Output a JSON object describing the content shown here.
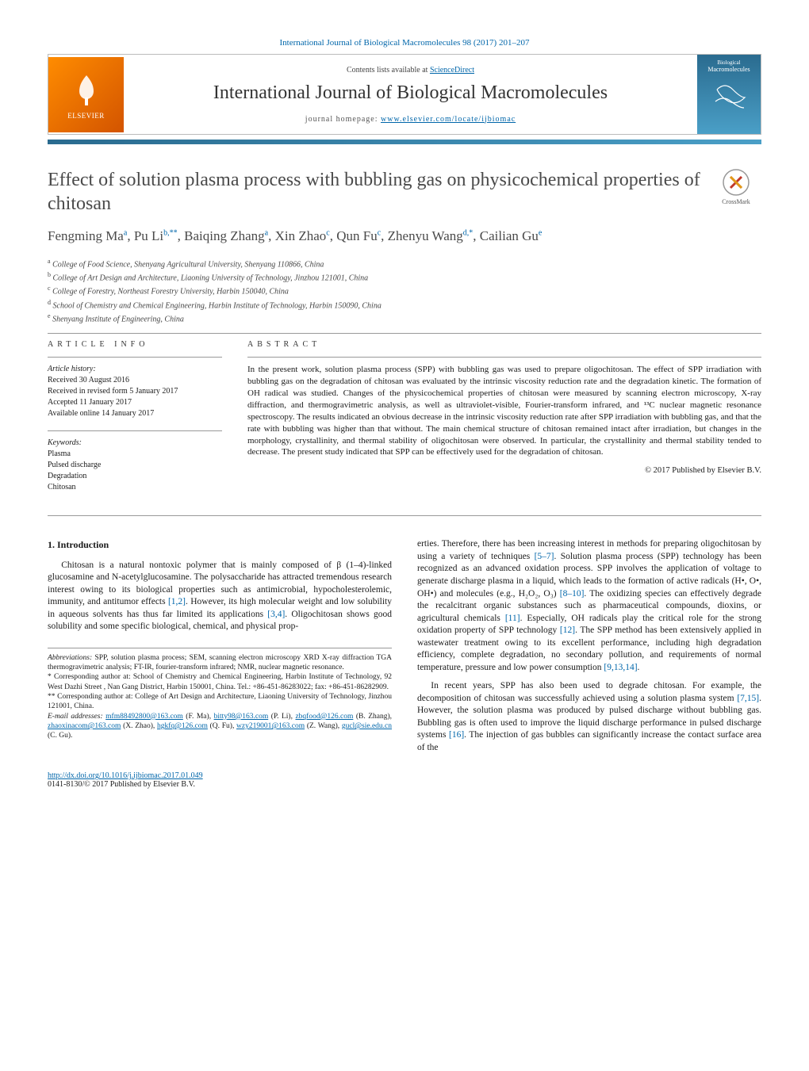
{
  "topLink": "International Journal of Biological Macromolecules 98 (2017) 201–207",
  "banner": {
    "contentsLine": "Contents lists available at ",
    "contentsLink": "ScienceDirect",
    "journalName": "International Journal of Biological Macromolecules",
    "homepageLabel": "journal homepage: ",
    "homepageUrl": "www.elsevier.com/locate/ijbiomac",
    "publisher": "ELSEVIER",
    "coverLine1": "Biological",
    "coverLine2": "Macromolecules"
  },
  "crossmarkLabel": "CrossMark",
  "title": "Effect of solution plasma process with bubbling gas on physicochemical properties of chitosan",
  "authors": [
    {
      "name": "Fengming Ma",
      "sup": "a"
    },
    {
      "name": "Pu Li",
      "sup": "b,**"
    },
    {
      "name": "Baiqing Zhang",
      "sup": "a"
    },
    {
      "name": "Xin Zhao",
      "sup": "c"
    },
    {
      "name": "Qun Fu",
      "sup": "c"
    },
    {
      "name": "Zhenyu Wang",
      "sup": "d,*"
    },
    {
      "name": "Cailian Gu",
      "sup": "e"
    }
  ],
  "affiliations": [
    {
      "sup": "a",
      "text": "College of Food Science, Shenyang Agricultural University, Shenyang 110866, China"
    },
    {
      "sup": "b",
      "text": "College of Art Design and Architecture, Liaoning University of Technology, Jinzhou 121001, China"
    },
    {
      "sup": "c",
      "text": "College of Forestry, Northeast Forestry University, Harbin 150040, China"
    },
    {
      "sup": "d",
      "text": "School of Chemistry and Chemical Engineering, Harbin Institute of Technology, Harbin 150090, China"
    },
    {
      "sup": "e",
      "text": "Shenyang Institute of Engineering, China"
    }
  ],
  "articleInfo": {
    "heading": "article info",
    "historyHeading": "Article history:",
    "history": [
      "Received 30 August 2016",
      "Received in revised form 5 January 2017",
      "Accepted 11 January 2017",
      "Available online 14 January 2017"
    ],
    "keywordsHeading": "Keywords:",
    "keywords": [
      "Plasma",
      "Pulsed discharge",
      "Degradation",
      "Chitosan"
    ]
  },
  "abstract": {
    "heading": "abstract",
    "text": "In the present work, solution plasma process (SPP) with bubbling gas was used to prepare oligochitosan. The effect of SPP irradiation with bubbling gas on the degradation of chitosan was evaluated by the intrinsic viscosity reduction rate and the degradation kinetic. The formation of OH radical was studied. Changes of the physicochemical properties of chitosan were measured by scanning electron microscopy, X-ray diffraction, and thermogravimetric analysis, as well as ultraviolet-visible, Fourier-transform infrared, and ¹³C nuclear magnetic resonance spectroscopy. The results indicated an obvious decrease in the intrinsic viscosity reduction rate after SPP irradiation with bubbling gas, and that the rate with bubbling was higher than that without. The main chemical structure of chitosan remained intact after irradiation, but changes in the morphology, crystallinity, and thermal stability of oligochitosan were observed. In particular, the crystallinity and thermal stability tended to decrease. The present study indicated that SPP can be effectively used for the degradation of chitosan.",
    "copyright": "© 2017 Published by Elsevier B.V."
  },
  "intro": {
    "heading": "1. Introduction",
    "col1p1_a": "Chitosan is a natural nontoxic polymer that is mainly composed of β (1–4)-linked glucosamine and N-acetylglucosamine. The polysaccharide has attracted tremendous research interest owing to its biological properties such as antimicrobial, hypocholesterolemic, immunity, and antitumor effects ",
    "cite12": "[1,2]",
    "col1p1_b": ". However, its high molecular weight and low solubility in aqueous solvents has thus far limited its applications ",
    "cite34": "[3,4]",
    "col1p1_c": ". Oligochitosan shows good solubility and some specific biological, chemical, and physical prop-",
    "col2p1_a": "erties. Therefore, there has been increasing interest in methods for preparing oligochitosan by using a variety of techniques ",
    "cite57": "[5–7]",
    "col2p1_b": ". Solution plasma process (SPP) technology has been recognized as an advanced oxidation process. SPP involves the application of voltage to generate discharge plasma in a liquid, which leads to the formation of active radicals (H•, O•, OH•) and molecules (e.g., H₂O₂, O₃) ",
    "cite810": "[8–10]",
    "col2p1_c": ". The oxidizing species can effectively degrade the recalcitrant organic substances such as pharmaceutical compounds, dioxins, or agricultural chemicals ",
    "cite11": "[11]",
    "col2p1_d": ". Especially, OH radicals play the critical role for the strong oxidation property of SPP technology ",
    "cite12b": "[12]",
    "col2p1_e": ". The SPP method has been extensively applied in wastewater treatment owing to its excellent performance, including high degradation efficiency, complete degradation, no secondary pollution, and requirements of normal temperature, pressure and low power consumption ",
    "cite91314": "[9,13,14]",
    "col2p1_f": ".",
    "col2p2_a": "In recent years, SPP has also been used to degrade chitosan. For example, the decomposition of chitosan was successfully achieved using a solution plasma system ",
    "cite715": "[7,15]",
    "col2p2_b": ". However, the solution plasma was produced by pulsed discharge without bubbling gas. Bubbling gas is often used to improve the liquid discharge performance in pulsed discharge systems ",
    "cite16": "[16]",
    "col2p2_c": ". The injection of gas bubbles can significantly increase the contact surface area of the"
  },
  "footnotes": {
    "abbrevLabel": "Abbreviations:",
    "abbrevText": " SPP, solution plasma process; SEM, scanning electron microscopy XRD X-ray diffraction TGA thermogravimetric analysis; FT-IR, fourier-transform infrared; NMR, nuclear magnetic resonance.",
    "corr1": "* Corresponding author at: School of Chemistry and Chemical Engineering, Harbin Institute of Technology, 92 West Dazhi Street , Nan Gang District, Harbin 150001, China. Tel.: +86-451-86283022; fax: +86-451-86282909.",
    "corr2": "** Corresponding author at: College of Art Design and Architecture, Liaoning University of Technology, Jinzhou 121001, China.",
    "emailLabel": "E-mail addresses: ",
    "emails": [
      {
        "addr": "mfm88492800@163.com",
        "who": " (F. Ma), "
      },
      {
        "addr": "bitty98@163.com",
        "who": " (P. Li), "
      },
      {
        "addr": "zbqfood@126.com",
        "who": " (B. Zhang), "
      },
      {
        "addr": "zhaoxinacom@163.com",
        "who": " (X. Zhao), "
      },
      {
        "addr": "hgkfq@126.com",
        "who": " (Q. Fu), "
      },
      {
        "addr": "wzy219001@163.com",
        "who": " (Z. Wang), "
      },
      {
        "addr": "gucl@sie.edu.cn",
        "who": " (C. Gu)."
      }
    ]
  },
  "footer": {
    "doi": "http://dx.doi.org/10.1016/j.ijbiomac.2017.01.049",
    "issn": "0141-8130/© 2017 Published by Elsevier B.V."
  },
  "colors": {
    "link": "#0066aa",
    "bannerGradStart": "#2a6b8f",
    "bannerGradEnd": "#4a9fc7",
    "elsevierOrange": "#ff8c00",
    "text": "#1a1a1a",
    "titleGrey": "#4a4a4a"
  }
}
